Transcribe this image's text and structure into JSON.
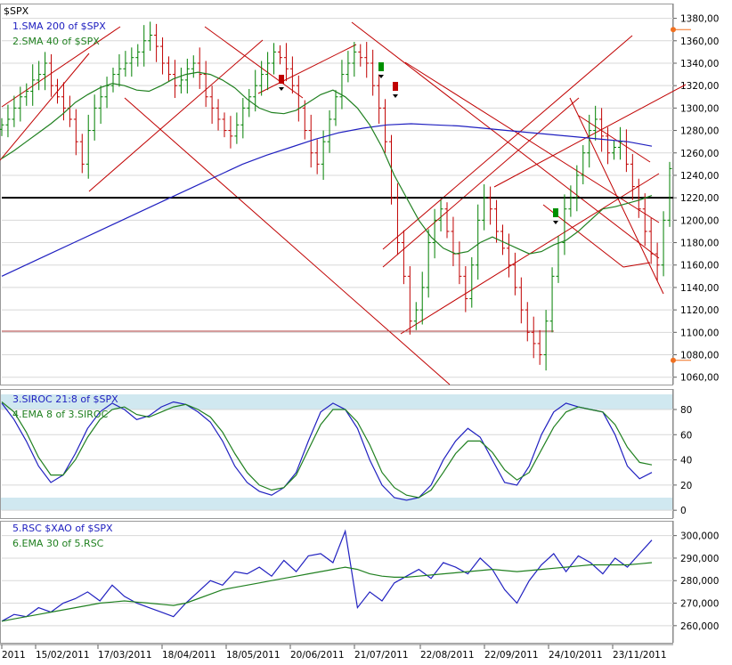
{
  "chart_data": [
    {
      "type": "ohlc",
      "title": "$SPX",
      "legend": [
        {
          "label": "1.SMA 200  of $SPX",
          "color": "#2020c0"
        },
        {
          "label": "2.SMA 40  of $SPX",
          "color": "#208020"
        }
      ],
      "ylim": [
        1055,
        1390
      ],
      "yticks": [
        "1380,00",
        "1360,00",
        "1340,00",
        "1320,00",
        "1300,00",
        "1280,00",
        "1260,00",
        "1240,00",
        "1220,00",
        "1200,00",
        "1180,00",
        "1160,00",
        "1140,00",
        "1120,00",
        "1100,00",
        "1080,00",
        "1060,00"
      ],
      "close": [
        1285,
        1290,
        1300,
        1310,
        1315,
        1325,
        1330,
        1340,
        1320,
        1310,
        1300,
        1290,
        1270,
        1250,
        1280,
        1300,
        1310,
        1320,
        1330,
        1335,
        1340,
        1345,
        1350,
        1360,
        1365,
        1355,
        1340,
        1330,
        1320,
        1325,
        1335,
        1340,
        1330,
        1310,
        1300,
        1290,
        1280,
        1275,
        1285,
        1300,
        1310,
        1320,
        1330,
        1340,
        1350,
        1345,
        1335,
        1320,
        1300,
        1280,
        1260,
        1250,
        1270,
        1290,
        1310,
        1330,
        1340,
        1350,
        1345,
        1340,
        1320,
        1300,
        1270,
        1220,
        1180,
        1150,
        1110,
        1120,
        1140,
        1180,
        1200,
        1210,
        1190,
        1170,
        1150,
        1130,
        1160,
        1200,
        1220,
        1210,
        1190,
        1175,
        1160,
        1140,
        1120,
        1100,
        1090,
        1080,
        1110,
        1150,
        1180,
        1210,
        1220,
        1240,
        1260,
        1280,
        1290,
        1275,
        1260,
        1265,
        1270,
        1250,
        1230,
        1210,
        1190,
        1170,
        1160,
        1200,
        1246
      ],
      "sma200": [
        1150,
        1160,
        1170,
        1180,
        1190,
        1200,
        1210,
        1220,
        1230,
        1240,
        1250,
        1258,
        1265,
        1272,
        1278,
        1282,
        1285,
        1286,
        1285,
        1284,
        1282,
        1280,
        1278,
        1276,
        1274,
        1272,
        1270,
        1266
      ],
      "sma40": [
        1255,
        1262,
        1270,
        1278,
        1286,
        1295,
        1305,
        1312,
        1318,
        1322,
        1320,
        1316,
        1315,
        1320,
        1326,
        1330,
        1332,
        1330,
        1325,
        1318,
        1308,
        1300,
        1296,
        1295,
        1298,
        1305,
        1312,
        1316,
        1310,
        1300,
        1285,
        1265,
        1240,
        1220,
        1200,
        1185,
        1175,
        1170,
        1172,
        1180,
        1185,
        1180,
        1175,
        1170,
        1172,
        1178,
        1182,
        1190,
        1200,
        1210,
        1212,
        1215,
        1218,
        1222
      ]
    },
    {
      "type": "line",
      "legend": [
        {
          "label": "3.SIROC 21:8  of $SPX",
          "color": "#2020c0"
        },
        {
          "label": "4.EMA 8  of 3.SIROC",
          "color": "#208020"
        }
      ],
      "ylim": [
        -2,
        92
      ],
      "yticks": [
        "80",
        "60",
        "40",
        "20",
        "0"
      ],
      "siroc": [
        85,
        72,
        55,
        35,
        22,
        28,
        45,
        65,
        78,
        85,
        80,
        72,
        75,
        82,
        86,
        84,
        78,
        70,
        55,
        35,
        22,
        15,
        12,
        18,
        30,
        55,
        78,
        85,
        80,
        65,
        40,
        20,
        10,
        8,
        10,
        20,
        40,
        55,
        65,
        58,
        40,
        22,
        20,
        35,
        60,
        78,
        85,
        82,
        80,
        78,
        60,
        35,
        25,
        30
      ],
      "ema8": [
        86,
        78,
        62,
        42,
        28,
        28,
        40,
        58,
        72,
        80,
        82,
        76,
        74,
        78,
        82,
        84,
        80,
        74,
        62,
        45,
        30,
        20,
        16,
        18,
        28,
        48,
        68,
        80,
        80,
        70,
        52,
        30,
        18,
        12,
        10,
        16,
        30,
        45,
        55,
        55,
        46,
        32,
        24,
        30,
        48,
        66,
        78,
        82,
        80,
        78,
        68,
        50,
        38,
        36
      ]
    },
    {
      "type": "line",
      "legend": [
        {
          "label": "5.RSC  $XAO of $SPX",
          "color": "#2020c0"
        },
        {
          "label": "6.EMA 30  of 5.RSC",
          "color": "#208020"
        }
      ],
      "ylim": [
        254000,
        305000
      ],
      "yticks": [
        "300,000",
        "290,000",
        "280,000",
        "270,000",
        "260,000"
      ],
      "rsc": [
        262000,
        265000,
        264000,
        268000,
        266000,
        270000,
        272000,
        275000,
        271000,
        278000,
        273000,
        270000,
        268000,
        266000,
        264000,
        270000,
        275000,
        280000,
        278000,
        284000,
        283000,
        286000,
        282000,
        289000,
        284000,
        291000,
        292000,
        288000,
        302000,
        268000,
        275000,
        271000,
        279000,
        282000,
        285000,
        281000,
        288000,
        286000,
        283000,
        290000,
        285000,
        276000,
        270000,
        280000,
        287000,
        292000,
        284000,
        291000,
        288000,
        283000,
        290000,
        286000,
        292000,
        298000
      ],
      "ema30": [
        262000,
        263000,
        264000,
        265000,
        266000,
        267000,
        268000,
        269000,
        270000,
        270500,
        271000,
        270500,
        270000,
        269500,
        269000,
        270000,
        272000,
        274000,
        276000,
        277000,
        278000,
        279000,
        280000,
        281000,
        282000,
        283000,
        284000,
        285000,
        286000,
        285000,
        283000,
        282000,
        281500,
        281500,
        282000,
        282500,
        283000,
        283500,
        284000,
        284500,
        285000,
        284500,
        284000,
        284500,
        285000,
        285500,
        286000,
        286500,
        287000,
        287000,
        287000,
        287000,
        287500,
        288000
      ]
    }
  ],
  "xlabels": [
    "2011",
    "15/02/2011",
    "17/03/2011",
    "18/04/2011",
    "18/05/2011",
    "20/06/2011",
    "21/07/2011",
    "22/08/2011",
    "22/09/2011",
    "24/10/2011",
    "23/11/2011"
  ],
  "colors": {
    "up": "#008000",
    "down": "#c00000",
    "trend": "#c00000",
    "hline": "#000000",
    "sma200": "#2020c0",
    "sma40": "#208020",
    "grid": "#d8d8d8",
    "band": "#d0e8f0",
    "marker": "#f07020"
  },
  "markers": [
    {
      "price": 1370
    },
    {
      "price": 1075
    }
  ],
  "flags": [
    {
      "type": "buy-arrow"
    },
    {
      "type": "sell-arrow"
    },
    {
      "type": "sell-arrow"
    },
    {
      "type": "buy-arrow"
    }
  ]
}
